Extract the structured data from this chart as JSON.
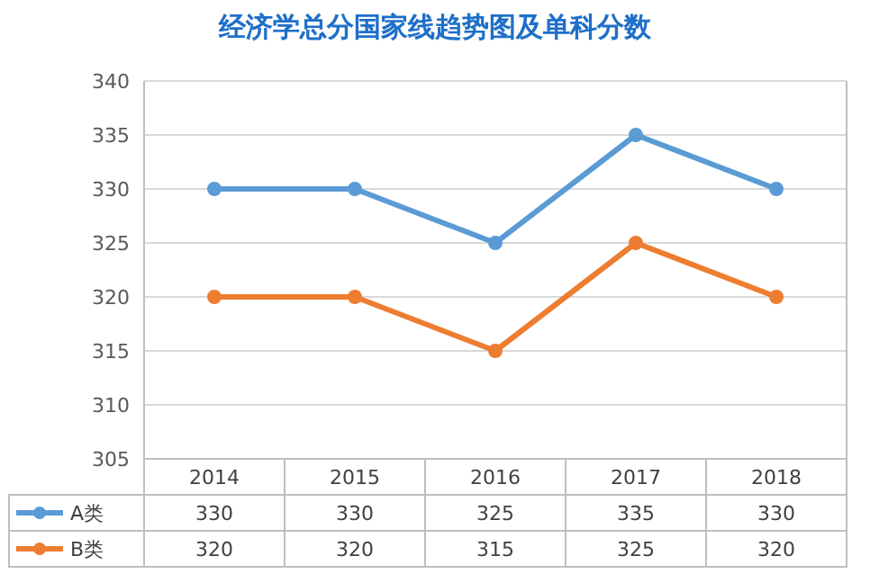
{
  "chart_data": {
    "type": "line",
    "title": "经济学总分国家线趋势图及单科分数",
    "categories": [
      "2014",
      "2015",
      "2016",
      "2017",
      "2018"
    ],
    "series": [
      {
        "name": "A类",
        "color": "#5b9bd5",
        "values": [
          330,
          330,
          325,
          335,
          330
        ]
      },
      {
        "name": "B类",
        "color": "#ed7d31",
        "values": [
          320,
          320,
          315,
          325,
          320
        ]
      }
    ],
    "ylim": [
      305,
      340
    ],
    "yticks": [
      305,
      310,
      315,
      320,
      325,
      330,
      335,
      340
    ],
    "grid": "y",
    "legend": "bottom",
    "data_labels": true,
    "marker": "circle",
    "line_style": "solid"
  }
}
